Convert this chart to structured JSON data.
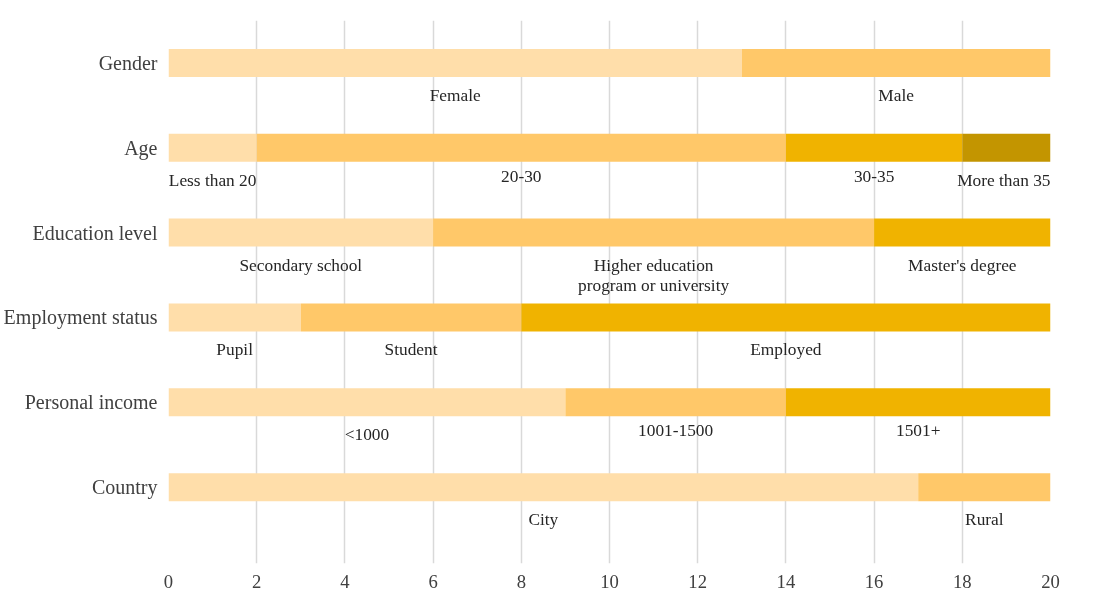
{
  "chart_data": {
    "type": "bar",
    "orientation": "horizontal",
    "stacked": true,
    "categories": [
      "Gender",
      "Age",
      "Education level",
      "Employment status",
      "Personal income",
      "Country"
    ],
    "series": [
      {
        "color": "#ffdeaa",
        "values": [
          13,
          2,
          6,
          3,
          9,
          17
        ]
      },
      {
        "color": "#ffc869",
        "values": [
          7,
          12,
          10,
          5,
          5,
          3
        ]
      },
      {
        "color": "#f0b300",
        "values": [
          null,
          4,
          4,
          12,
          6,
          null
        ]
      },
      {
        "color": "#c39500",
        "values": [
          null,
          2,
          null,
          null,
          null,
          null
        ]
      }
    ],
    "xlim": [
      0,
      20
    ],
    "xticks": [
      0,
      2,
      4,
      6,
      8,
      10,
      12,
      14,
      16,
      18,
      20
    ],
    "grid": "x",
    "annotations": [
      "Female",
      "Male",
      "Less than 20",
      "20-30",
      "30-35",
      "More than 35",
      "Secondary school",
      "Higher education\nprogram or university",
      "Master's degree",
      "Pupil",
      "Student",
      "Employed",
      "<1000",
      "1001-1500",
      "1501+",
      "City",
      "Rural"
    ]
  }
}
